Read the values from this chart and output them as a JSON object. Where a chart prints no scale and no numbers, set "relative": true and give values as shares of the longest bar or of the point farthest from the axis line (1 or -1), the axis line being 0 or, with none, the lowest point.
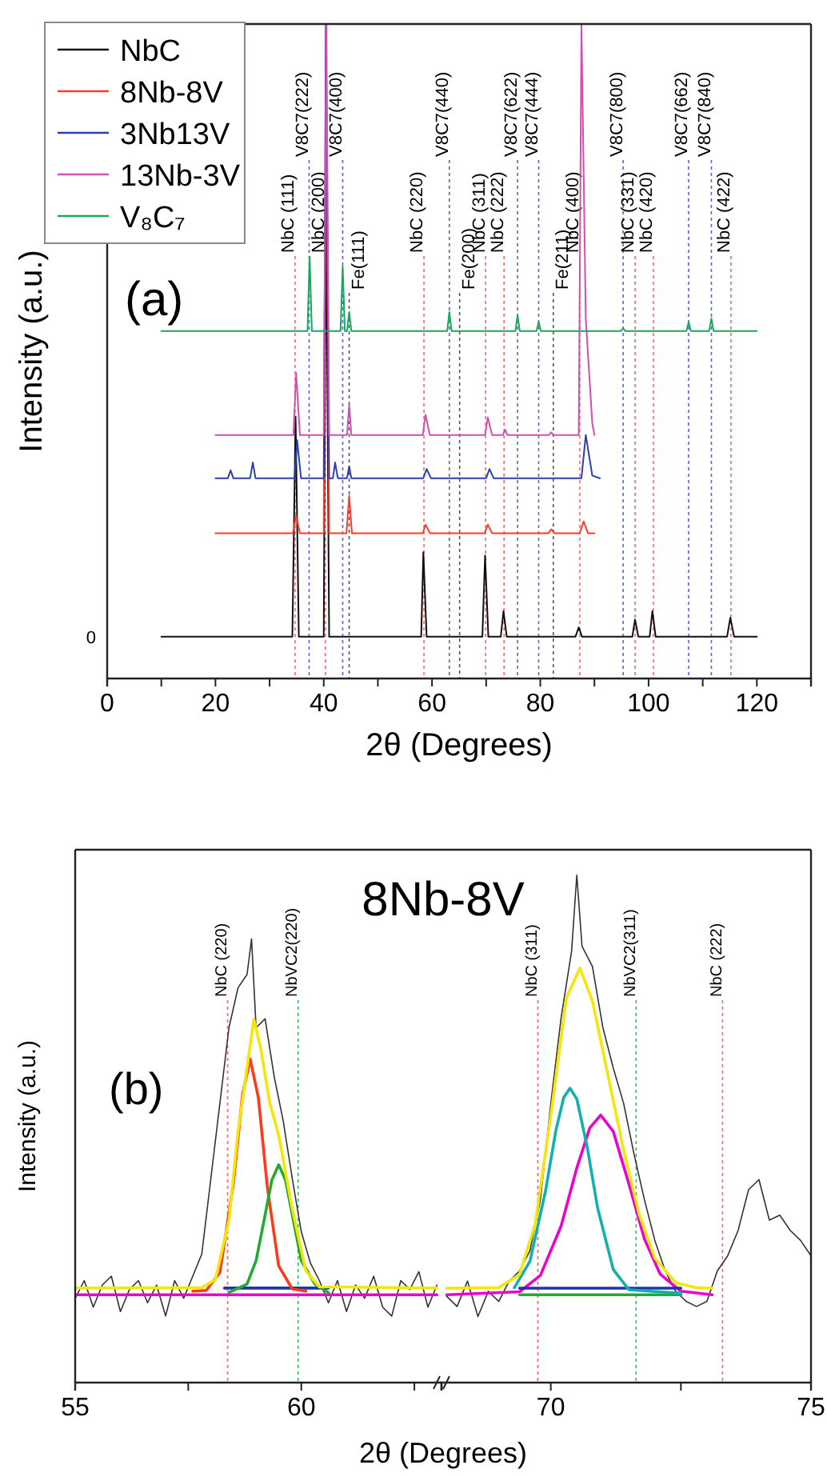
{
  "chart_data": [
    {
      "type": "line",
      "relative": true,
      "xlabel": "2θ (Degrees)",
      "ylabel": "Intensity (a.u.)",
      "xlim": [
        0,
        130
      ],
      "xticks": [
        0,
        {
          "value": 10,
          "label": null
        },
        20,
        {
          "value": 30,
          "label": null
        },
        40,
        {
          "value": 50,
          "label": null
        },
        60,
        {
          "value": 70,
          "label": null
        },
        80,
        {
          "value": 90,
          "label": null
        },
        100,
        {
          "value": 110,
          "label": null
        },
        120
      ],
      "legend": "top left",
      "annotations": [
        "(a)",
        "0"
      ],
      "series": [
        {
          "name": "NbC",
          "color": "#111111",
          "x": [
            10,
            34.2,
            34.8,
            35.4,
            40,
            40.4,
            41,
            58,
            58.4,
            59,
            69.3,
            69.8,
            70.4,
            72.7,
            73.2,
            73.8,
            86.5,
            87.1,
            87.7,
            97,
            97.5,
            98.1,
            100.2,
            100.7,
            101.3,
            114.5,
            115.1,
            115.8,
            120
          ],
          "values": [
            0.064,
            0.064,
            0.4,
            0.064,
            0.064,
            0.75,
            0.064,
            0.064,
            0.193,
            0.064,
            0.064,
            0.188,
            0.064,
            0.064,
            0.103,
            0.064,
            0.064,
            0.078,
            0.064,
            0.064,
            0.09,
            0.064,
            0.064,
            0.103,
            0.064,
            0.064,
            0.093,
            0.064,
            0.064
          ]
        },
        {
          "name": "8Nb-8V",
          "color": "#ff3b2f",
          "x": [
            20,
            34.3,
            34.9,
            35.6,
            40,
            40.4,
            41,
            44.2,
            44.7,
            45.2,
            58.3,
            58.8,
            59.6,
            69.7,
            70.3,
            71.1,
            81.5,
            82,
            82.6,
            87.3,
            88,
            88.8,
            90
          ],
          "values": [
            0.222,
            0.222,
            0.249,
            0.222,
            0.222,
            1,
            0.222,
            0.222,
            0.279,
            0.222,
            0.222,
            0.235,
            0.222,
            0.222,
            0.235,
            0.222,
            0.222,
            0.228,
            0.222,
            0.222,
            0.24,
            0.222,
            0.222
          ]
        },
        {
          "name": "3Nb13V",
          "color": "#2f3fae",
          "x": [
            20,
            22.3,
            22.8,
            23.3,
            26.4,
            26.9,
            27.4,
            34.6,
            35.1,
            35.8,
            40,
            40.4,
            41,
            41.7,
            42.1,
            42.6,
            44.3,
            44.7,
            45.1,
            58.4,
            59,
            59.8,
            70,
            70.6,
            71.4,
            87.6,
            88.4,
            89.6,
            91
          ],
          "values": [
            0.306,
            0.306,
            0.318,
            0.306,
            0.306,
            0.33,
            0.306,
            0.306,
            0.364,
            0.306,
            0.306,
            1,
            0.306,
            0.306,
            0.33,
            0.306,
            0.306,
            0.324,
            0.306,
            0.306,
            0.32,
            0.306,
            0.306,
            0.32,
            0.306,
            0.306,
            0.372,
            0.31,
            0.306
          ]
        },
        {
          "name": "13Nb-3V",
          "color": "#d04fb0",
          "x": [
            20,
            34.4,
            34.9,
            35.6,
            40,
            40.5,
            41,
            44.3,
            44.7,
            45.1,
            58.3,
            58.8,
            59.6,
            69.8,
            70.3,
            71.1,
            73.1,
            73.5,
            73.9,
            81.6,
            82,
            82.4,
            87.1,
            87.6,
            88.4,
            89.6,
            90
          ],
          "values": [
            0.372,
            0.372,
            0.467,
            0.372,
            0.372,
            1,
            0.372,
            0.372,
            0.418,
            0.372,
            0.372,
            0.403,
            0.372,
            0.372,
            0.399,
            0.372,
            0.372,
            0.38,
            0.372,
            0.372,
            0.376,
            0.372,
            0.372,
            1,
            0.55,
            0.39,
            0.372
          ]
        },
        {
          "name": "V₈C₇",
          "color": "#1aa85a",
          "x": [
            10,
            37,
            37.4,
            37.8,
            43.1,
            43.5,
            43.9,
            44.3,
            44.7,
            45.1,
            62.8,
            63.2,
            63.6,
            75.4,
            75.8,
            76.2,
            79.3,
            79.7,
            80.1,
            94.9,
            95.3,
            95.7,
            107,
            107.4,
            107.8,
            111.2,
            111.6,
            112,
            120
          ],
          "values": [
            0.531,
            0.531,
            0.645,
            0.531,
            0.531,
            0.63,
            0.531,
            0.531,
            0.56,
            0.531,
            0.531,
            0.56,
            0.531,
            0.531,
            0.555,
            0.531,
            0.531,
            0.545,
            0.531,
            0.531,
            0.535,
            0.531,
            0.531,
            0.545,
            0.531,
            0.531,
            0.55,
            0.531,
            0.531
          ]
        }
      ],
      "ref_lines": [
        {
          "axis": "x",
          "value": 34.7,
          "label": "NbC (111)",
          "color": "#ff6666",
          "line_style": "dashed"
        },
        {
          "axis": "x",
          "value": 37.3,
          "label": "V8C7(222)",
          "color": "#5566cc",
          "line_style": "dashed"
        },
        {
          "axis": "x",
          "value": 40.3,
          "label": "NbC (200)",
          "color": "#ff6666",
          "line_style": "dashed"
        },
        {
          "axis": "x",
          "value": 43.5,
          "label": "V8C7(400)",
          "color": "#5566cc",
          "line_style": "dashed"
        },
        {
          "axis": "x",
          "value": 44.7,
          "label": "Fe(111)",
          "color": "#555555",
          "line_style": "dashed"
        },
        {
          "axis": "x",
          "value": 58.5,
          "label": "NbC (220)",
          "color": "#ff6666",
          "line_style": "dashed"
        },
        {
          "axis": "x",
          "value": 63.2,
          "label": "V8C7(440)",
          "color": "#5566cc",
          "line_style": "dashed"
        },
        {
          "axis": "x",
          "value": 65.1,
          "label": "Fe(200)",
          "color": "#555555",
          "line_style": "dashed"
        },
        {
          "axis": "x",
          "value": 69.9,
          "label": "NbC (311)",
          "color": "#ff6666",
          "line_style": "dashed"
        },
        {
          "axis": "x",
          "value": 73.3,
          "label": "NbC (222)",
          "color": "#ff6666",
          "line_style": "dashed"
        },
        {
          "axis": "x",
          "value": 75.8,
          "label": "V8C7(622)",
          "color": "#5566cc",
          "line_style": "dashed"
        },
        {
          "axis": "x",
          "value": 79.7,
          "label": "V8C7(444)",
          "color": "#5566cc",
          "line_style": "dashed"
        },
        {
          "axis": "x",
          "value": 82.4,
          "label": "Fe(211)",
          "color": "#555555",
          "line_style": "dashed"
        },
        {
          "axis": "x",
          "value": 87.3,
          "label": "NbC (400)",
          "color": "#ff6666",
          "line_style": "dashed"
        },
        {
          "axis": "x",
          "value": 95.3,
          "label": "V8C7(800)",
          "color": "#5566cc",
          "line_style": "dashed"
        },
        {
          "axis": "x",
          "value": 97.5,
          "label": "NbC (331)",
          "color": "#ff6666",
          "line_style": "dashed"
        },
        {
          "axis": "x",
          "value": 100.9,
          "label": "NbC (420)",
          "color": "#ff6666",
          "line_style": "dashed"
        },
        {
          "axis": "x",
          "value": 107.4,
          "label": "V8C7(662)",
          "color": "#5566cc",
          "line_style": "dashed"
        },
        {
          "axis": "x",
          "value": 111.6,
          "label": "V8C7(840)",
          "color": "#5566cc",
          "line_style": "dashed"
        },
        {
          "axis": "x",
          "value": 115.2,
          "label": "NbC (422)",
          "color": "#ff6666",
          "line_style": "dashed"
        }
      ]
    },
    {
      "type": "line",
      "relative": true,
      "title": "8Nb-8V",
      "xlabel": "2θ (Degrees)",
      "ylabel": "Intensity (a.u.)",
      "xlim": [
        55,
        63.1
      ],
      "xticks": [
        55,
        {
          "value": 57.5,
          "label": null
        },
        60,
        {
          "value": 62.5,
          "label": null
        }
      ],
      "annotations": [
        "(b)"
      ],
      "series": [
        {
          "color": "#333333",
          "x": [
            55,
            55.2,
            55.4,
            55.6,
            55.8,
            56,
            56.2,
            56.4,
            56.6,
            56.8,
            57,
            57.2,
            57.4,
            57.6,
            57.8,
            58,
            58.2,
            58.4,
            58.6,
            58.8,
            58.9,
            59,
            59.2,
            59.4,
            59.6,
            59.8,
            60,
            60.2,
            60.4,
            60.6,
            60.8,
            61,
            61.2,
            61.4,
            61.6,
            61.8,
            62,
            62.2,
            62.4,
            62.6,
            62.8,
            63
          ],
          "values": [
            0.19,
            0.23,
            0.17,
            0.22,
            0.24,
            0.16,
            0.21,
            0.23,
            0.18,
            0.22,
            0.15,
            0.23,
            0.19,
            0.24,
            0.29,
            0.46,
            0.63,
            0.8,
            0.89,
            0.92,
            1,
            0.8,
            0.82,
            0.69,
            0.59,
            0.46,
            0.34,
            0.27,
            0.23,
            0.18,
            0.23,
            0.16,
            0.22,
            0.19,
            0.24,
            0.17,
            0.15,
            0.23,
            0.21,
            0.25,
            0.17,
            0.22
          ]
        },
        {
          "color": "#ee00cc",
          "x": [
            55,
            63
          ],
          "values": [
            0.198,
            0.198
          ]
        },
        {
          "color": "#2233aa",
          "x": [
            58.3,
            60.6
          ],
          "values": [
            0.213,
            0.213
          ]
        },
        {
          "color": "#ff3a1a",
          "x": [
            57.6,
            57.9,
            58.2,
            58.5,
            58.7,
            58.87,
            59.05,
            59.25,
            59.5,
            59.8,
            60.1
          ],
          "values": [
            0.206,
            0.208,
            0.248,
            0.45,
            0.65,
            0.729,
            0.643,
            0.44,
            0.263,
            0.211,
            0.206
          ]
        },
        {
          "color": "#22aa33",
          "x": [
            58.4,
            58.8,
            59,
            59.2,
            59.35,
            59.5,
            59.65,
            59.8,
            60,
            60.3,
            60.6
          ],
          "values": [
            0.203,
            0.222,
            0.275,
            0.378,
            0.457,
            0.491,
            0.457,
            0.378,
            0.275,
            0.222,
            0.203
          ]
        },
        {
          "color": "#f5e50a",
          "x": [
            55,
            57.8,
            58.1,
            58.4,
            58.6,
            58.95,
            59.1,
            59.3,
            59.5,
            59.8,
            60.1,
            60.4,
            63
          ],
          "values": [
            0.213,
            0.214,
            0.232,
            0.366,
            0.565,
            0.819,
            0.755,
            0.632,
            0.558,
            0.392,
            0.252,
            0.216,
            0.213
          ]
        }
      ],
      "ref_lines": [
        {
          "axis": "x",
          "value": 58.37,
          "label": "NbC (220)",
          "color": "#ff6666",
          "line_style": "dashed"
        },
        {
          "axis": "x",
          "value": 59.93,
          "label": "NbVC2(220)",
          "color": "#33bb55",
          "line_style": "dashed"
        }
      ]
    },
    {
      "type": "line",
      "relative": true,
      "xlim": [
        67.9,
        75
      ],
      "xticks": [
        70,
        {
          "value": 72.5,
          "label": null
        },
        75
      ],
      "series": [
        {
          "color": "#333333",
          "x": [
            68,
            68.2,
            68.4,
            68.6,
            68.8,
            69,
            69.2,
            69.4,
            69.6,
            69.8,
            70,
            70.2,
            70.4,
            70.5,
            70.6,
            70.8,
            71,
            71.2,
            71.4,
            71.6,
            71.8,
            72,
            72.2,
            72.4,
            72.6,
            72.8,
            73,
            73.2,
            73.4,
            73.6,
            73.8,
            74,
            74.2,
            74.4,
            74.6,
            74.8,
            75
          ],
          "values": [
            0.17,
            0.15,
            0.2,
            0.13,
            0.18,
            0.16,
            0.2,
            0.22,
            0.26,
            0.36,
            0.55,
            0.72,
            0.85,
            1,
            0.86,
            0.82,
            0.7,
            0.62,
            0.55,
            0.45,
            0.36,
            0.28,
            0.22,
            0.18,
            0.16,
            0.15,
            0.16,
            0.22,
            0.25,
            0.3,
            0.38,
            0.4,
            0.32,
            0.33,
            0.3,
            0.28,
            0.25
          ]
        },
        {
          "color": "#ee00cc",
          "x": [
            68,
            69.4,
            69.8,
            70.2,
            70.5,
            70.75,
            70.96,
            71.2,
            71.5,
            71.8,
            72.1,
            72.5,
            73.1
          ],
          "values": [
            0.173,
            0.179,
            0.211,
            0.309,
            0.423,
            0.502,
            0.527,
            0.495,
            0.392,
            0.283,
            0.214,
            0.18,
            0.173
          ]
        },
        {
          "color": "#22aa33",
          "x": [
            69.4,
            72.5
          ],
          "values": [
            0.173,
            0.173
          ]
        },
        {
          "color": "#2233aa",
          "x": [
            69.4,
            72.5
          ],
          "values": [
            0.186,
            0.186
          ]
        },
        {
          "color": "#11b0b0",
          "x": [
            69.3,
            69.6,
            69.9,
            70.1,
            70.25,
            70.37,
            70.5,
            70.7,
            70.9,
            71.2,
            71.5,
            72.5
          ],
          "values": [
            0.187,
            0.239,
            0.378,
            0.498,
            0.562,
            0.58,
            0.559,
            0.464,
            0.344,
            0.223,
            0.183,
            0.176
          ]
        },
        {
          "color": "#f5e50a",
          "x": [
            68,
            69,
            69.4,
            69.7,
            70,
            70.3,
            70.56,
            70.8,
            71.1,
            71.4,
            71.7,
            72,
            72.4,
            72.8,
            73.1
          ],
          "values": [
            0.186,
            0.187,
            0.213,
            0.312,
            0.526,
            0.758,
            0.817,
            0.752,
            0.605,
            0.458,
            0.331,
            0.245,
            0.197,
            0.187,
            0.186
          ]
        }
      ],
      "ref_lines": [
        {
          "axis": "x",
          "value": 69.75,
          "label": "NbC (311)",
          "color": "#ff6666",
          "line_style": "dashed"
        },
        {
          "axis": "x",
          "value": 71.64,
          "label": "NbVC2(311)",
          "color": "#33bb55",
          "line_style": "dashed"
        },
        {
          "axis": "x",
          "value": 73.3,
          "label": "NbC (222)",
          "color": "#ff6666",
          "line_style": "dashed"
        }
      ]
    }
  ]
}
